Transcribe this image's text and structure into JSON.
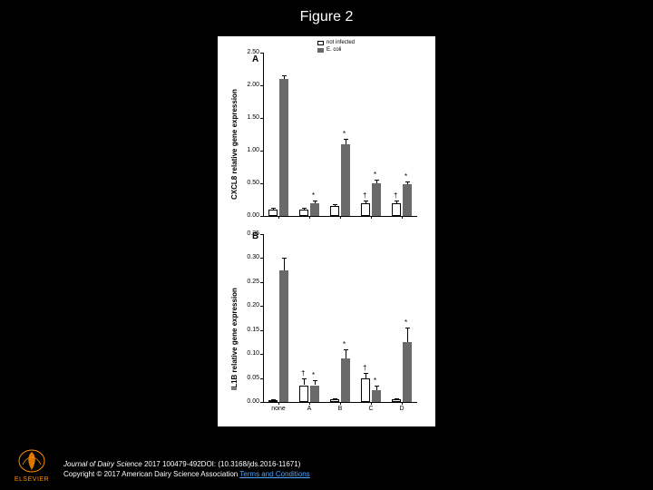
{
  "title": "Figure 2",
  "legend": {
    "series1": "not infected",
    "series2": "E. coli"
  },
  "categories": [
    "none",
    "A",
    "B",
    "C",
    "D"
  ],
  "colors": {
    "background": "#000000",
    "panel_bg": "#ffffff",
    "series1": "#ffffff",
    "series2": "#6a6a6a",
    "axis": "#000000",
    "text": "#000000",
    "link": "#4da3ff",
    "logo": "#ff8c00"
  },
  "panelA": {
    "label": "A",
    "ylabel": "CXCL8 relative gene expression",
    "ylim": [
      0,
      2.5
    ],
    "ytick_step": 0.5,
    "yticks": [
      "0.00",
      "0.50",
      "1.00",
      "1.50",
      "2.00",
      "2.50"
    ],
    "bars": [
      {
        "cat": "none",
        "s1": 0.1,
        "s1e": 0.03,
        "s2": 2.1,
        "s2e": 0.05,
        "sig_s1": "",
        "sig_s2": ""
      },
      {
        "cat": "A",
        "s1": 0.1,
        "s1e": 0.02,
        "s2": 0.2,
        "s2e": 0.04,
        "sig_s1": "",
        "sig_s2": "*"
      },
      {
        "cat": "B",
        "s1": 0.15,
        "s1e": 0.03,
        "s2": 1.1,
        "s2e": 0.08,
        "sig_s1": "",
        "sig_s2": "*"
      },
      {
        "cat": "C",
        "s1": 0.2,
        "s1e": 0.03,
        "s2": 0.5,
        "s2e": 0.05,
        "sig_s1": "†",
        "sig_s2": "*"
      },
      {
        "cat": "D",
        "s1": 0.2,
        "s1e": 0.03,
        "s2": 0.48,
        "s2e": 0.05,
        "sig_s1": "†",
        "sig_s2": "*"
      }
    ]
  },
  "panelB": {
    "label": "B",
    "ylabel": "IL1B relative gene expression",
    "ylim": [
      0,
      0.35
    ],
    "ytick_step": 0.05,
    "yticks": [
      "0.00",
      "0.05",
      "0.10",
      "0.15",
      "0.20",
      "0.25",
      "0.30",
      "0.35"
    ],
    "bars": [
      {
        "cat": "none",
        "s1": 0.003,
        "s1e": 0.002,
        "s2": 0.275,
        "s2e": 0.025,
        "sig_s1": "",
        "sig_s2": ""
      },
      {
        "cat": "A",
        "s1": 0.035,
        "s1e": 0.015,
        "s2": 0.035,
        "s2e": 0.01,
        "sig_s1": "†",
        "sig_s2": "*"
      },
      {
        "cat": "B",
        "s1": 0.005,
        "s1e": 0.003,
        "s2": 0.09,
        "s2e": 0.02,
        "sig_s1": "",
        "sig_s2": "*"
      },
      {
        "cat": "C",
        "s1": 0.05,
        "s1e": 0.01,
        "s2": 0.025,
        "s2e": 0.01,
        "sig_s1": "†",
        "sig_s2": "*"
      },
      {
        "cat": "D",
        "s1": 0.005,
        "s1e": 0.003,
        "s2": 0.125,
        "s2e": 0.03,
        "sig_s1": "",
        "sig_s2": "*"
      }
    ]
  },
  "footer": {
    "citation_journal": "Journal of Dairy Science",
    "citation_rest": " 2017 100479-492DOI: (10.3168/jds.2016-11671)",
    "copyright": "Copyright © 2017 American Dairy Science Association ",
    "terms": "Terms and Conditions"
  },
  "logo_text": "ELSEVIER"
}
